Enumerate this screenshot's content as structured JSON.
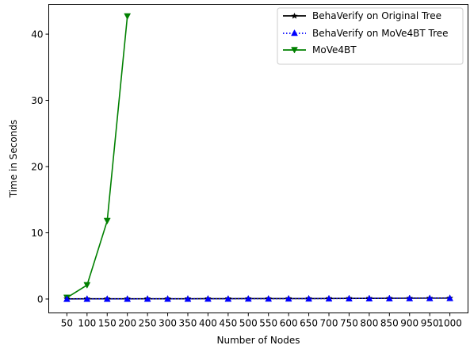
{
  "chart_data": {
    "type": "line",
    "xlabel": "Number of Nodes",
    "ylabel": "Time in Seconds",
    "x_ticks": [
      50,
      100,
      150,
      200,
      250,
      300,
      350,
      400,
      450,
      500,
      550,
      600,
      650,
      700,
      750,
      800,
      850,
      900,
      950,
      1000
    ],
    "y_ticks": [
      0,
      10,
      20,
      30,
      40
    ],
    "xlim": [
      5,
      1045
    ],
    "ylim": [
      -2.1,
      44.5
    ],
    "grid": false,
    "legend_position": "top-right",
    "series": [
      {
        "name": "BehaVerify on Original Tree",
        "color": "#000000",
        "line_style": "solid",
        "marker": "star",
        "x": [
          50,
          100,
          150,
          200,
          250,
          300,
          350,
          400,
          450,
          500,
          550,
          600,
          650,
          700,
          750,
          800,
          850,
          900,
          950,
          1000
        ],
        "y": [
          0.02,
          0.03,
          0.03,
          0.03,
          0.04,
          0.04,
          0.04,
          0.05,
          0.05,
          0.06,
          0.06,
          0.07,
          0.07,
          0.08,
          0.09,
          0.1,
          0.11,
          0.12,
          0.13,
          0.14
        ]
      },
      {
        "name": "BehaVerify on MoVe4BT Tree",
        "color": "#0000ff",
        "line_style": "dotted",
        "marker": "triangle-up",
        "x": [
          50,
          100,
          150,
          200,
          250,
          300,
          350,
          400,
          450,
          500,
          550,
          600,
          650,
          700,
          750,
          800,
          850,
          900,
          950,
          1000
        ],
        "y": [
          0.01,
          0.02,
          0.02,
          0.02,
          0.03,
          0.03,
          0.03,
          0.04,
          0.04,
          0.05,
          0.05,
          0.06,
          0.06,
          0.07,
          0.08,
          0.09,
          0.1,
          0.11,
          0.12,
          0.13
        ]
      },
      {
        "name": "MoVe4BT",
        "color": "#008000",
        "line_style": "solid",
        "marker": "triangle-down",
        "x": [
          50,
          100,
          150,
          200
        ],
        "y": [
          0.2,
          2.1,
          11.8,
          42.7
        ]
      }
    ]
  }
}
